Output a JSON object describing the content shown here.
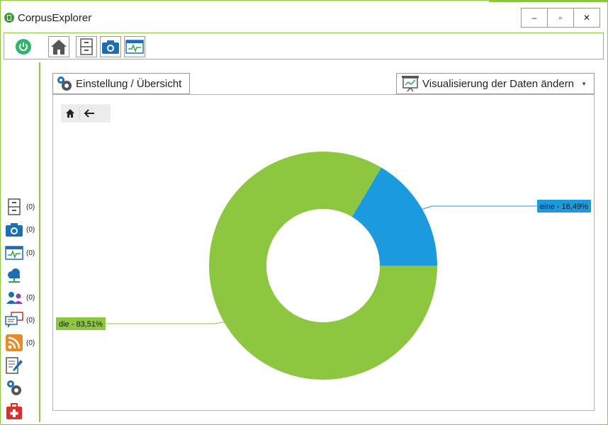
{
  "app": {
    "title": "CorpusExplorer",
    "window_controls": {
      "minimize": "‒",
      "maximize": "▫",
      "close": "✕"
    }
  },
  "toolbar": {
    "items": [
      "power-icon",
      "home-icon",
      "cabinet-icon",
      "camera-icon",
      "monitor-chart-icon"
    ]
  },
  "sidebar": {
    "items": [
      {
        "icon": "cabinet-icon",
        "count": "(0)"
      },
      {
        "icon": "camera-icon",
        "count": "(0)"
      },
      {
        "icon": "monitor-chart-icon",
        "count": "(0)"
      },
      {
        "icon": "cloud-network-icon",
        "count": ""
      },
      {
        "icon": "users-icon",
        "count": "(0)"
      },
      {
        "icon": "chat-icon",
        "count": "(0)"
      },
      {
        "icon": "rss-icon",
        "count": "(0)"
      },
      {
        "icon": "edit-document-icon",
        "count": ""
      },
      {
        "icon": "gears-icon",
        "count": ""
      },
      {
        "icon": "medkit-icon",
        "count": ""
      }
    ]
  },
  "main": {
    "settings_tab": "Einstellung / Übersicht",
    "viz_select": "Visualisierung der Daten ändern",
    "nav": {
      "home": "home-icon",
      "back": "arrow-left-icon"
    }
  },
  "colors": {
    "accent": "#8dc63f",
    "series_blue": "#1b9ade",
    "series_green": "#8dc63f"
  },
  "chart_data": {
    "type": "pie",
    "variant": "donut",
    "slices": [
      {
        "label": "eine",
        "value": 16.49,
        "display": "eine - 16,49%",
        "color": "#1b9ade"
      },
      {
        "label": "die",
        "value": 83.51,
        "display": "die - 83,51%",
        "color": "#8dc63f"
      }
    ]
  }
}
